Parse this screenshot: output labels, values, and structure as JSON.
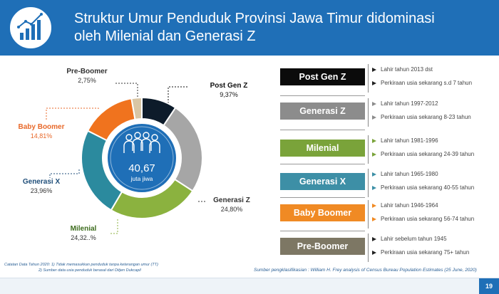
{
  "header": {
    "title_line1": "Struktur Umur Penduduk Provinsi Jawa Timur didominasi",
    "title_line2": "oleh Milenial dan Generasi Z",
    "bg_color": "#1f6fb7"
  },
  "center": {
    "total": "40,67",
    "unit": "juta jiwa"
  },
  "chart_data": {
    "type": "pie",
    "title": "Struktur Umur Penduduk Provinsi Jawa Timur didominasi oleh Milenial dan Generasi Z",
    "center_label": "40,67 juta jiwa",
    "categories": [
      "Post Gen Z",
      "Generasi Z",
      "Milenial",
      "Generasi X",
      "Baby Boomer",
      "Pre-Boomer"
    ],
    "values": [
      9.37,
      24.8,
      24.32,
      23.96,
      14.81,
      2.75
    ],
    "value_labels": [
      "9,37%",
      "24,80%",
      "24,32..%",
      "23,96%",
      "14,81%",
      "2,75%"
    ],
    "colors": [
      "#0d1b2a",
      "#a6a6a6",
      "#8bb23f",
      "#2b8a9e",
      "#f0731e",
      "#d9c6a5"
    ],
    "label_colors": [
      "#111111",
      "#333333",
      "#333333",
      "#1f4e79",
      "#e8692a",
      "#333333"
    ]
  },
  "generations": [
    {
      "name": "Post Gen Z",
      "color": "#0b0b0b",
      "lines": [
        "Lahir tahun 2013 dst",
        "Perkiraan usia sekarang s.d 7 tahun"
      ],
      "marker": "#222222"
    },
    {
      "name": "Generasi Z",
      "color": "#8c8c8c",
      "lines": [
        "Lahir tahun 1997-2012",
        "Perkiraan usia sekarang 8-23 tahun"
      ],
      "marker": "#8c8c8c"
    },
    {
      "name": "Milenial",
      "color": "#7aa33a",
      "lines": [
        "Lahir tahun 1981-1996",
        "Perkiraan usia sekarang 24-39 tahun"
      ],
      "marker": "#7aa33a"
    },
    {
      "name": "Generasi X",
      "color": "#3d8fa6",
      "lines": [
        "Lahir tahun 1965-1980",
        "Perkiraan usia sekarang 40-55 tahun"
      ],
      "marker": "#3d8fa6"
    },
    {
      "name": "Baby Boomer",
      "color": "#f08a24",
      "lines": [
        "Lahir tahun 1946-1964",
        "Perkiraan usia sekarang 56-74 tahun"
      ],
      "marker": "#f08a24"
    },
    {
      "name": "Pre-Boomer",
      "color": "#7d7764",
      "lines": [
        "Lahir sebelum tahun 1945",
        "Perkiraan usia sekarang 75+ tahun"
      ],
      "marker": "#222222"
    }
  ],
  "notes": {
    "line1": "Catatan Data Tahun 2020: 1)  Tidak memasukkan penduduk tanpa keterangan umur (TT)",
    "line2": "2) Sumber data usia penduduk berasal dari Ditjen Dukcapil"
  },
  "source": "Sumber pengklasifikasian : William H. Frey analysis of Census Bureau Population Estimates (25 June, 2020)",
  "page_number": "19"
}
